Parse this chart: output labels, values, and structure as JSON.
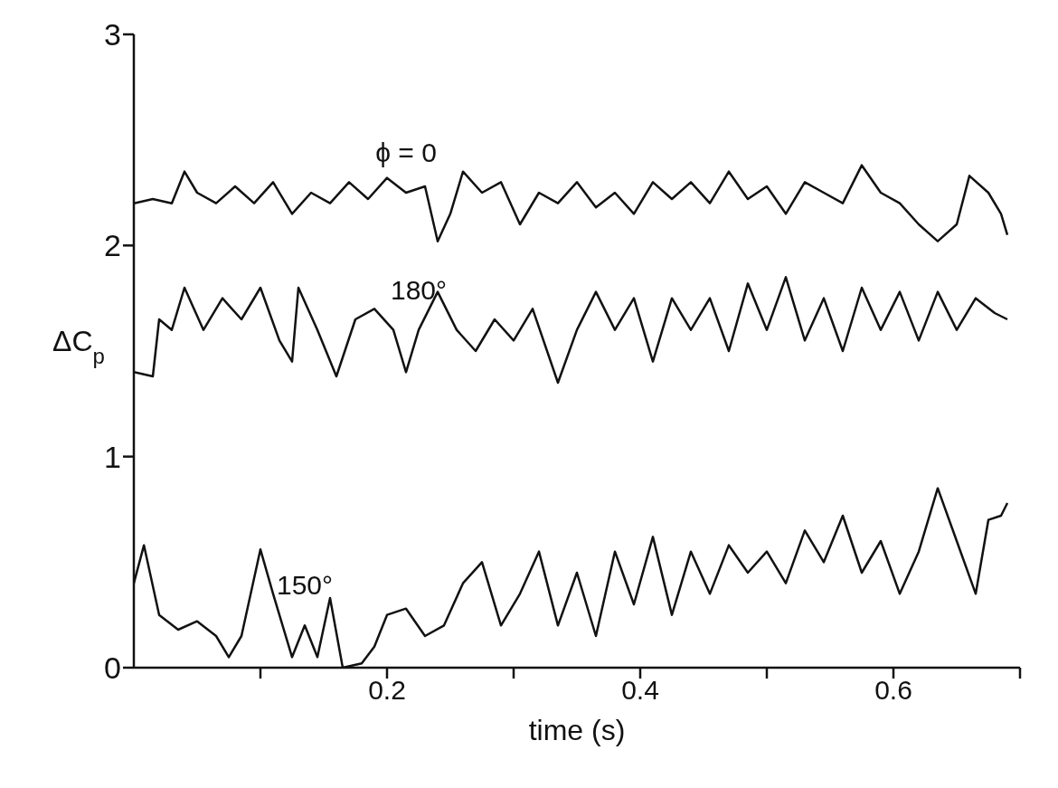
{
  "chart_data": {
    "type": "line",
    "xlabel": "time (s)",
    "ylabel": "ΔC$_{p}$",
    "xlim": [
      0,
      0.7
    ],
    "ylim": [
      0,
      3
    ],
    "xticks": [
      {
        "value": 0.1,
        "label": null
      },
      {
        "value": 0.2,
        "label": "0.2"
      },
      {
        "value": 0.3,
        "label": null
      },
      {
        "value": 0.4,
        "label": "0.4"
      },
      {
        "value": 0.5,
        "label": null
      },
      {
        "value": 0.6,
        "label": "0.6"
      },
      {
        "value": 0.7,
        "label": null
      }
    ],
    "yticks": [
      0,
      1,
      2,
      3
    ],
    "grid": false,
    "legend": false,
    "marker": "none",
    "line_style": "solid",
    "series": [
      {
        "name": "ϕ = 0",
        "color": "#111111",
        "x": [
          0,
          0.015,
          0.03,
          0.04,
          0.05,
          0.065,
          0.08,
          0.095,
          0.11,
          0.125,
          0.14,
          0.155,
          0.17,
          0.185,
          0.2,
          0.215,
          0.23,
          0.24,
          0.25,
          0.26,
          0.275,
          0.29,
          0.305,
          0.32,
          0.335,
          0.35,
          0.365,
          0.38,
          0.395,
          0.41,
          0.425,
          0.44,
          0.455,
          0.47,
          0.485,
          0.5,
          0.515,
          0.53,
          0.545,
          0.56,
          0.575,
          0.59,
          0.605,
          0.62,
          0.635,
          0.65,
          0.66,
          0.675,
          0.685,
          0.69
        ],
        "values": [
          2.2,
          2.22,
          2.2,
          2.35,
          2.25,
          2.2,
          2.28,
          2.2,
          2.3,
          2.15,
          2.25,
          2.2,
          2.3,
          2.22,
          2.32,
          2.25,
          2.28,
          2.02,
          2.15,
          2.35,
          2.25,
          2.3,
          2.1,
          2.25,
          2.2,
          2.3,
          2.18,
          2.25,
          2.15,
          2.3,
          2.22,
          2.3,
          2.2,
          2.35,
          2.22,
          2.28,
          2.15,
          2.3,
          2.25,
          2.2,
          2.38,
          2.25,
          2.2,
          2.1,
          2.02,
          2.1,
          2.33,
          2.25,
          2.15,
          2.05
        ]
      },
      {
        "name": "180°",
        "color": "#111111",
        "x": [
          0,
          0.015,
          0.02,
          0.03,
          0.04,
          0.055,
          0.07,
          0.085,
          0.1,
          0.115,
          0.125,
          0.13,
          0.145,
          0.16,
          0.175,
          0.19,
          0.205,
          0.215,
          0.225,
          0.24,
          0.255,
          0.27,
          0.285,
          0.3,
          0.315,
          0.335,
          0.35,
          0.365,
          0.38,
          0.395,
          0.41,
          0.425,
          0.44,
          0.455,
          0.47,
          0.485,
          0.5,
          0.515,
          0.53,
          0.545,
          0.56,
          0.575,
          0.59,
          0.605,
          0.62,
          0.635,
          0.65,
          0.665,
          0.68,
          0.69
        ],
        "values": [
          1.4,
          1.38,
          1.65,
          1.6,
          1.8,
          1.6,
          1.75,
          1.65,
          1.8,
          1.55,
          1.45,
          1.8,
          1.6,
          1.38,
          1.65,
          1.7,
          1.6,
          1.4,
          1.6,
          1.78,
          1.6,
          1.5,
          1.65,
          1.55,
          1.7,
          1.35,
          1.6,
          1.78,
          1.6,
          1.75,
          1.45,
          1.75,
          1.6,
          1.75,
          1.5,
          1.82,
          1.6,
          1.85,
          1.55,
          1.75,
          1.5,
          1.8,
          1.6,
          1.78,
          1.55,
          1.78,
          1.6,
          1.75,
          1.68,
          1.65
        ]
      },
      {
        "name": "150°",
        "color": "#111111",
        "x": [
          0,
          0.008,
          0.02,
          0.035,
          0.05,
          0.065,
          0.075,
          0.085,
          0.1,
          0.11,
          0.125,
          0.135,
          0.145,
          0.155,
          0.165,
          0.18,
          0.19,
          0.2,
          0.215,
          0.23,
          0.245,
          0.26,
          0.275,
          0.29,
          0.305,
          0.32,
          0.335,
          0.35,
          0.365,
          0.38,
          0.395,
          0.41,
          0.425,
          0.44,
          0.455,
          0.47,
          0.485,
          0.5,
          0.515,
          0.53,
          0.545,
          0.56,
          0.575,
          0.59,
          0.605,
          0.62,
          0.635,
          0.65,
          0.665,
          0.675,
          0.685,
          0.69
        ],
        "values": [
          0.4,
          0.58,
          0.25,
          0.18,
          0.22,
          0.15,
          0.05,
          0.15,
          0.56,
          0.35,
          0.05,
          0.2,
          0.05,
          0.33,
          0.0,
          0.02,
          0.1,
          0.25,
          0.28,
          0.15,
          0.2,
          0.4,
          0.5,
          0.2,
          0.35,
          0.55,
          0.2,
          0.45,
          0.15,
          0.55,
          0.3,
          0.62,
          0.25,
          0.55,
          0.35,
          0.58,
          0.45,
          0.55,
          0.4,
          0.65,
          0.5,
          0.72,
          0.45,
          0.6,
          0.35,
          0.55,
          0.85,
          0.6,
          0.35,
          0.7,
          0.72,
          0.78
        ]
      }
    ]
  }
}
